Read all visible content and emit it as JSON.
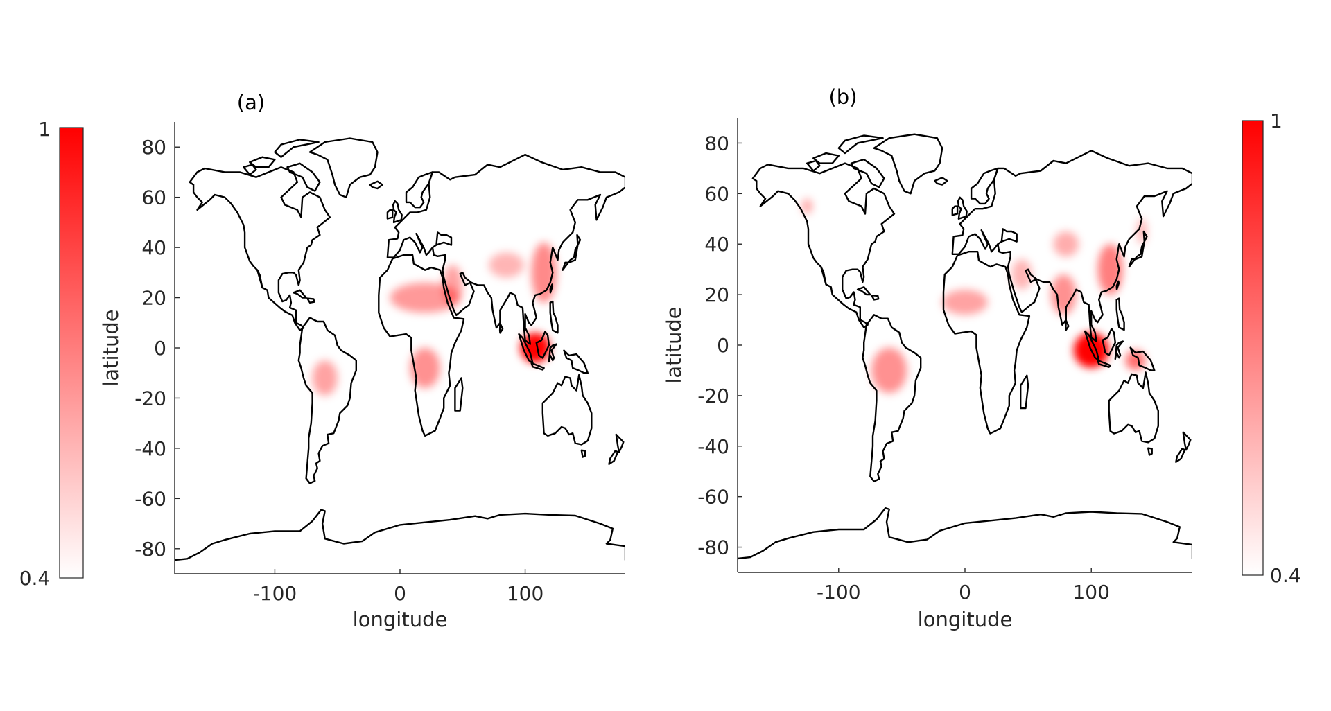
{
  "figure": {
    "colorbar_color": "#ff0000",
    "colorbar_left": {
      "max_label": "1",
      "min_label": "0.4",
      "max": 1,
      "min": 0.4
    },
    "colorbar_right": {
      "max_label": "1",
      "min_label": "0.4",
      "max": 1,
      "min": 0.4
    }
  },
  "panels": [
    {
      "title": "(a)",
      "xlabel": "longitude",
      "ylabel": "latitude",
      "xlim": [
        -180,
        180
      ],
      "ylim": [
        -90,
        90
      ],
      "xticks": [
        {
          "v": -100,
          "t": "-100"
        },
        {
          "v": 0,
          "t": "0"
        },
        {
          "v": 100,
          "t": "100"
        }
      ],
      "yticks": [
        {
          "v": 80,
          "t": "80"
        },
        {
          "v": 60,
          "t": "60"
        },
        {
          "v": 40,
          "t": "40"
        },
        {
          "v": 20,
          "t": "20"
        },
        {
          "v": 0,
          "t": "0"
        },
        {
          "v": -20,
          "t": "-20"
        },
        {
          "v": -40,
          "t": "-40"
        },
        {
          "v": -60,
          "t": "-60"
        },
        {
          "v": -80,
          "t": "-80"
        }
      ],
      "hotspots": [
        {
          "lon": 108,
          "lat": 0,
          "value": 1.0,
          "rlon": 12,
          "rlat": 6
        },
        {
          "lon": 115,
          "lat": 30,
          "value": 0.62,
          "rlon": 10,
          "rlat": 12
        },
        {
          "lon": 85,
          "lat": 33,
          "value": 0.5,
          "rlon": 14,
          "rlat": 5
        },
        {
          "lon": 20,
          "lat": 20,
          "value": 0.58,
          "rlon": 28,
          "rlat": 6
        },
        {
          "lon": 42,
          "lat": 25,
          "value": 0.55,
          "rlon": 8,
          "rlat": 8
        },
        {
          "lon": 20,
          "lat": -8,
          "value": 0.6,
          "rlon": 12,
          "rlat": 8
        },
        {
          "lon": -60,
          "lat": -12,
          "value": 0.55,
          "rlon": 10,
          "rlat": 7
        }
      ]
    },
    {
      "title": "(b)",
      "xlabel": "longitude",
      "ylabel": "latitude",
      "xlim": [
        -180,
        180
      ],
      "ylim": [
        -90,
        90
      ],
      "xticks": [
        {
          "v": -100,
          "t": "-100"
        },
        {
          "v": 0,
          "t": "0"
        },
        {
          "v": 100,
          "t": "100"
        }
      ],
      "yticks": [
        {
          "v": 80,
          "t": "80"
        },
        {
          "v": 60,
          "t": "60"
        },
        {
          "v": 40,
          "t": "40"
        },
        {
          "v": 20,
          "t": "20"
        },
        {
          "v": 0,
          "t": "0"
        },
        {
          "v": -20,
          "t": "-20"
        },
        {
          "v": -40,
          "t": "-40"
        },
        {
          "v": -60,
          "t": "-60"
        },
        {
          "v": -80,
          "t": "-80"
        }
      ],
      "hotspots": [
        {
          "lon": 100,
          "lat": -2,
          "value": 1.0,
          "rlon": 14,
          "rlat": 7
        },
        {
          "lon": 135,
          "lat": -6,
          "value": 0.7,
          "rlon": 8,
          "rlat": 4
        },
        {
          "lon": 115,
          "lat": 30,
          "value": 0.65,
          "rlon": 10,
          "rlat": 10
        },
        {
          "lon": 80,
          "lat": 40,
          "value": 0.52,
          "rlon": 10,
          "rlat": 5
        },
        {
          "lon": 78,
          "lat": 20,
          "value": 0.6,
          "rlon": 10,
          "rlat": 8
        },
        {
          "lon": 45,
          "lat": 28,
          "value": 0.5,
          "rlon": 8,
          "rlat": 6
        },
        {
          "lon": 0,
          "lat": 17,
          "value": 0.55,
          "rlon": 18,
          "rlat": 5
        },
        {
          "lon": -60,
          "lat": -10,
          "value": 0.6,
          "rlon": 14,
          "rlat": 9
        },
        {
          "lon": -125,
          "lat": 55,
          "value": 0.55,
          "rlon": 4,
          "rlat": 3
        },
        {
          "lon": 140,
          "lat": 45,
          "value": 0.5,
          "rlon": 4,
          "rlat": 5
        }
      ]
    }
  ]
}
